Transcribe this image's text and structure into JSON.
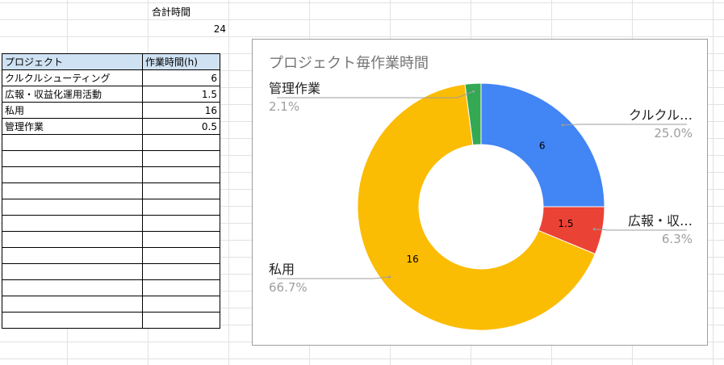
{
  "summary": {
    "label": "合計時間",
    "value": "24"
  },
  "table": {
    "headers": [
      "プロジェクト",
      "作業時間(h)"
    ],
    "rows": [
      [
        "クルクルシューティング",
        "6"
      ],
      [
        "広報・収益化運用活動",
        "1.5"
      ],
      [
        "私用",
        "16"
      ],
      [
        "管理作業",
        "0.5"
      ]
    ],
    "empty_rows": 12
  },
  "chart_data": {
    "type": "pie",
    "donut": true,
    "title": "プロジェクト毎作業時間",
    "slices": [
      {
        "label": "クルクル…",
        "value": 6,
        "value_label": "6",
        "percent": "25.0%",
        "color": "#4285f4"
      },
      {
        "label": "広報・収…",
        "value": 1.5,
        "value_label": "1.5",
        "percent": "6.3%",
        "color": "#ea4335"
      },
      {
        "label": "私用",
        "value": 16,
        "value_label": "16",
        "percent": "66.7%",
        "color": "#fbbc04"
      },
      {
        "label": "管理作業",
        "value": 0.5,
        "value_label": "",
        "percent": "2.1%",
        "color": "#34a853"
      }
    ]
  }
}
